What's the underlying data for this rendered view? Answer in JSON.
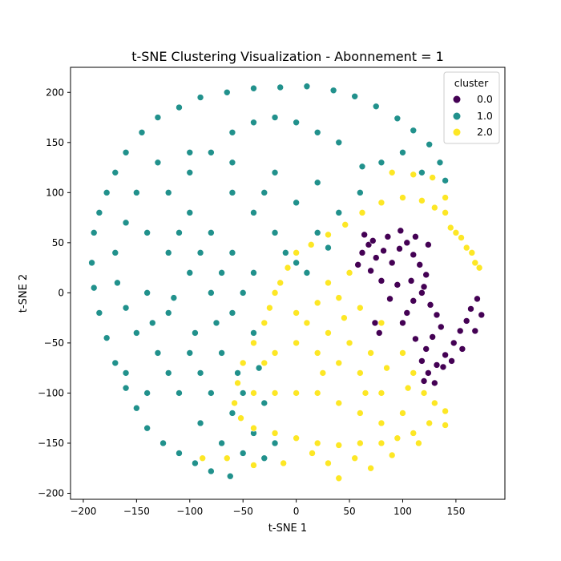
{
  "chart_data": {
    "type": "scatter",
    "title": "t-SNE Clustering Visualization - Abonnement = 1",
    "xlabel": "t-SNE 1",
    "ylabel": "t-SNE 2",
    "xlim": [
      -212,
      196
    ],
    "ylim": [
      -206,
      225
    ],
    "xticks": [
      -200,
      -150,
      -100,
      -50,
      0,
      50,
      100,
      150
    ],
    "yticks": [
      -200,
      -150,
      -100,
      -50,
      0,
      50,
      100,
      150,
      200
    ],
    "grid": false,
    "legend": {
      "title": "cluster",
      "placement": "top-right",
      "entries": [
        {
          "label": "0.0",
          "color": "#440154"
        },
        {
          "label": "1.0",
          "color": "#21918c"
        },
        {
          "label": "2.0",
          "color": "#fde725"
        }
      ]
    },
    "series": [
      {
        "name": "0.0",
        "color": "#440154",
        "points": [
          [
            62,
            40
          ],
          [
            68,
            48
          ],
          [
            75,
            35
          ],
          [
            82,
            42
          ],
          [
            90,
            30
          ],
          [
            97,
            44
          ],
          [
            104,
            50
          ],
          [
            110,
            38
          ],
          [
            116,
            28
          ],
          [
            122,
            18
          ],
          [
            70,
            22
          ],
          [
            80,
            12
          ],
          [
            95,
            8
          ],
          [
            108,
            12
          ],
          [
            118,
            0
          ],
          [
            126,
            -12
          ],
          [
            132,
            -22
          ],
          [
            136,
            -34
          ],
          [
            128,
            -44
          ],
          [
            122,
            -56
          ],
          [
            118,
            -68
          ],
          [
            124,
            -80
          ],
          [
            132,
            -72
          ],
          [
            140,
            -62
          ],
          [
            148,
            -50
          ],
          [
            154,
            -38
          ],
          [
            160,
            -28
          ],
          [
            164,
            -16
          ],
          [
            170,
            -6
          ],
          [
            174,
            -22
          ],
          [
            168,
            -38
          ],
          [
            156,
            -56
          ],
          [
            146,
            -68
          ],
          [
            138,
            -74
          ],
          [
            130,
            -90
          ],
          [
            120,
            -88
          ],
          [
            104,
            -20
          ],
          [
            88,
            -6
          ],
          [
            78,
            -40
          ],
          [
            74,
            -30
          ],
          [
            100,
            -30
          ],
          [
            112,
            -46
          ],
          [
            58,
            28
          ],
          [
            64,
            58
          ],
          [
            72,
            52
          ],
          [
            86,
            56
          ],
          [
            98,
            62
          ],
          [
            112,
            56
          ],
          [
            124,
            48
          ],
          [
            120,
            6
          ],
          [
            110,
            -8
          ]
        ]
      },
      {
        "name": "1.0",
        "color": "#21918c",
        "points": [
          [
            -190,
            60
          ],
          [
            -185,
            80
          ],
          [
            -178,
            100
          ],
          [
            -170,
            120
          ],
          [
            -160,
            140
          ],
          [
            -145,
            160
          ],
          [
            -130,
            175
          ],
          [
            -110,
            185
          ],
          [
            -90,
            195
          ],
          [
            -65,
            200
          ],
          [
            -40,
            204
          ],
          [
            -15,
            205
          ],
          [
            10,
            206
          ],
          [
            35,
            202
          ],
          [
            55,
            196
          ],
          [
            75,
            186
          ],
          [
            95,
            174
          ],
          [
            110,
            162
          ],
          [
            125,
            148
          ],
          [
            135,
            130
          ],
          [
            140,
            112
          ],
          [
            -192,
            30
          ],
          [
            -190,
            5
          ],
          [
            -185,
            -20
          ],
          [
            -178,
            -45
          ],
          [
            -170,
            -70
          ],
          [
            -160,
            -95
          ],
          [
            -150,
            -115
          ],
          [
            -140,
            -135
          ],
          [
            -125,
            -150
          ],
          [
            -110,
            -160
          ],
          [
            -95,
            -170
          ],
          [
            -80,
            -178
          ],
          [
            -62,
            -183
          ],
          [
            -120,
            100
          ],
          [
            -100,
            120
          ],
          [
            -80,
            140
          ],
          [
            -60,
            160
          ],
          [
            -40,
            170
          ],
          [
            -20,
            175
          ],
          [
            0,
            170
          ],
          [
            20,
            160
          ],
          [
            40,
            150
          ],
          [
            -140,
            60
          ],
          [
            -120,
            40
          ],
          [
            -100,
            20
          ],
          [
            -80,
            0
          ],
          [
            -60,
            -20
          ],
          [
            -40,
            -40
          ],
          [
            -100,
            -60
          ],
          [
            -120,
            -80
          ],
          [
            -80,
            -100
          ],
          [
            -60,
            -120
          ],
          [
            -40,
            -140
          ],
          [
            -20,
            -150
          ],
          [
            -100,
            80
          ],
          [
            -80,
            60
          ],
          [
            -60,
            40
          ],
          [
            -40,
            20
          ],
          [
            -20,
            0
          ],
          [
            0,
            30
          ],
          [
            20,
            60
          ],
          [
            40,
            80
          ],
          [
            60,
            100
          ],
          [
            -60,
            100
          ],
          [
            -40,
            80
          ],
          [
            -20,
            60
          ],
          [
            0,
            90
          ],
          [
            20,
            110
          ],
          [
            -140,
            0
          ],
          [
            -150,
            -40
          ],
          [
            -130,
            -60
          ],
          [
            -110,
            -100
          ],
          [
            -90,
            -130
          ],
          [
            -70,
            -150
          ],
          [
            -50,
            -160
          ],
          [
            -30,
            -165
          ],
          [
            -150,
            100
          ],
          [
            -160,
            70
          ],
          [
            -170,
            40
          ],
          [
            -168,
            10
          ],
          [
            -160,
            -15
          ],
          [
            80,
            130
          ],
          [
            100,
            140
          ],
          [
            118,
            120
          ],
          [
            62,
            126
          ],
          [
            -20,
            120
          ],
          [
            -60,
            130
          ],
          [
            -100,
            140
          ],
          [
            -130,
            130
          ],
          [
            -110,
            60
          ],
          [
            -90,
            40
          ],
          [
            -70,
            20
          ],
          [
            -50,
            0
          ],
          [
            -70,
            -60
          ],
          [
            -90,
            -80
          ],
          [
            -50,
            -100
          ],
          [
            -30,
            -110
          ],
          [
            -10,
            40
          ],
          [
            10,
            20
          ],
          [
            30,
            45
          ],
          [
            -30,
            100
          ],
          [
            -120,
            -20
          ],
          [
            -140,
            -100
          ],
          [
            -160,
            -80
          ],
          [
            -135,
            -30
          ],
          [
            -115,
            -5
          ],
          [
            -95,
            -40
          ],
          [
            -75,
            -30
          ],
          [
            -55,
            -80
          ],
          [
            -35,
            -75
          ]
        ]
      },
      {
        "name": "2.0",
        "color": "#fde725",
        "points": [
          [
            90,
            120
          ],
          [
            110,
            118
          ],
          [
            128,
            115
          ],
          [
            140,
            95
          ],
          [
            140,
            80
          ],
          [
            145,
            65
          ],
          [
            150,
            60
          ],
          [
            155,
            55
          ],
          [
            160,
            45
          ],
          [
            165,
            40
          ],
          [
            168,
            30
          ],
          [
            172,
            25
          ],
          [
            100,
            95
          ],
          [
            118,
            92
          ],
          [
            130,
            85
          ],
          [
            80,
            90
          ],
          [
            62,
            80
          ],
          [
            46,
            68
          ],
          [
            30,
            58
          ],
          [
            14,
            48
          ],
          [
            0,
            40
          ],
          [
            -8,
            25
          ],
          [
            -15,
            10
          ],
          [
            -20,
            0
          ],
          [
            -25,
            -15
          ],
          [
            -30,
            -30
          ],
          [
            -40,
            -50
          ],
          [
            -50,
            -70
          ],
          [
            -55,
            -90
          ],
          [
            -58,
            -110
          ],
          [
            -52,
            -125
          ],
          [
            -40,
            -135
          ],
          [
            -20,
            -140
          ],
          [
            0,
            -145
          ],
          [
            20,
            -150
          ],
          [
            40,
            -152
          ],
          [
            60,
            -150
          ],
          [
            80,
            -150
          ],
          [
            95,
            -145
          ],
          [
            110,
            -140
          ],
          [
            125,
            -130
          ],
          [
            140,
            -118
          ],
          [
            0,
            -20
          ],
          [
            20,
            -10
          ],
          [
            40,
            -5
          ],
          [
            60,
            -15
          ],
          [
            80,
            -30
          ],
          [
            100,
            -60
          ],
          [
            110,
            -80
          ],
          [
            120,
            -100
          ],
          [
            0,
            -50
          ],
          [
            20,
            -60
          ],
          [
            40,
            -70
          ],
          [
            60,
            -80
          ],
          [
            80,
            -100
          ],
          [
            100,
            -120
          ],
          [
            -20,
            -60
          ],
          [
            -20,
            -100
          ],
          [
            0,
            -100
          ],
          [
            20,
            -100
          ],
          [
            40,
            -110
          ],
          [
            60,
            -120
          ],
          [
            80,
            -130
          ],
          [
            -40,
            -100
          ],
          [
            -30,
            -70
          ],
          [
            10,
            -30
          ],
          [
            30,
            -40
          ],
          [
            50,
            -50
          ],
          [
            70,
            -60
          ],
          [
            30,
            10
          ],
          [
            50,
            20
          ],
          [
            45,
            -25
          ],
          [
            25,
            -80
          ],
          [
            65,
            -100
          ],
          [
            85,
            -75
          ],
          [
            105,
            -95
          ],
          [
            130,
            -110
          ],
          [
            -88,
            -165
          ],
          [
            -65,
            -165
          ],
          [
            -40,
            -172
          ],
          [
            -12,
            -170
          ],
          [
            15,
            -160
          ],
          [
            30,
            -170
          ],
          [
            40,
            -185
          ],
          [
            55,
            -165
          ],
          [
            70,
            -175
          ],
          [
            90,
            -162
          ],
          [
            115,
            -150
          ],
          [
            140,
            -132
          ]
        ]
      }
    ]
  }
}
